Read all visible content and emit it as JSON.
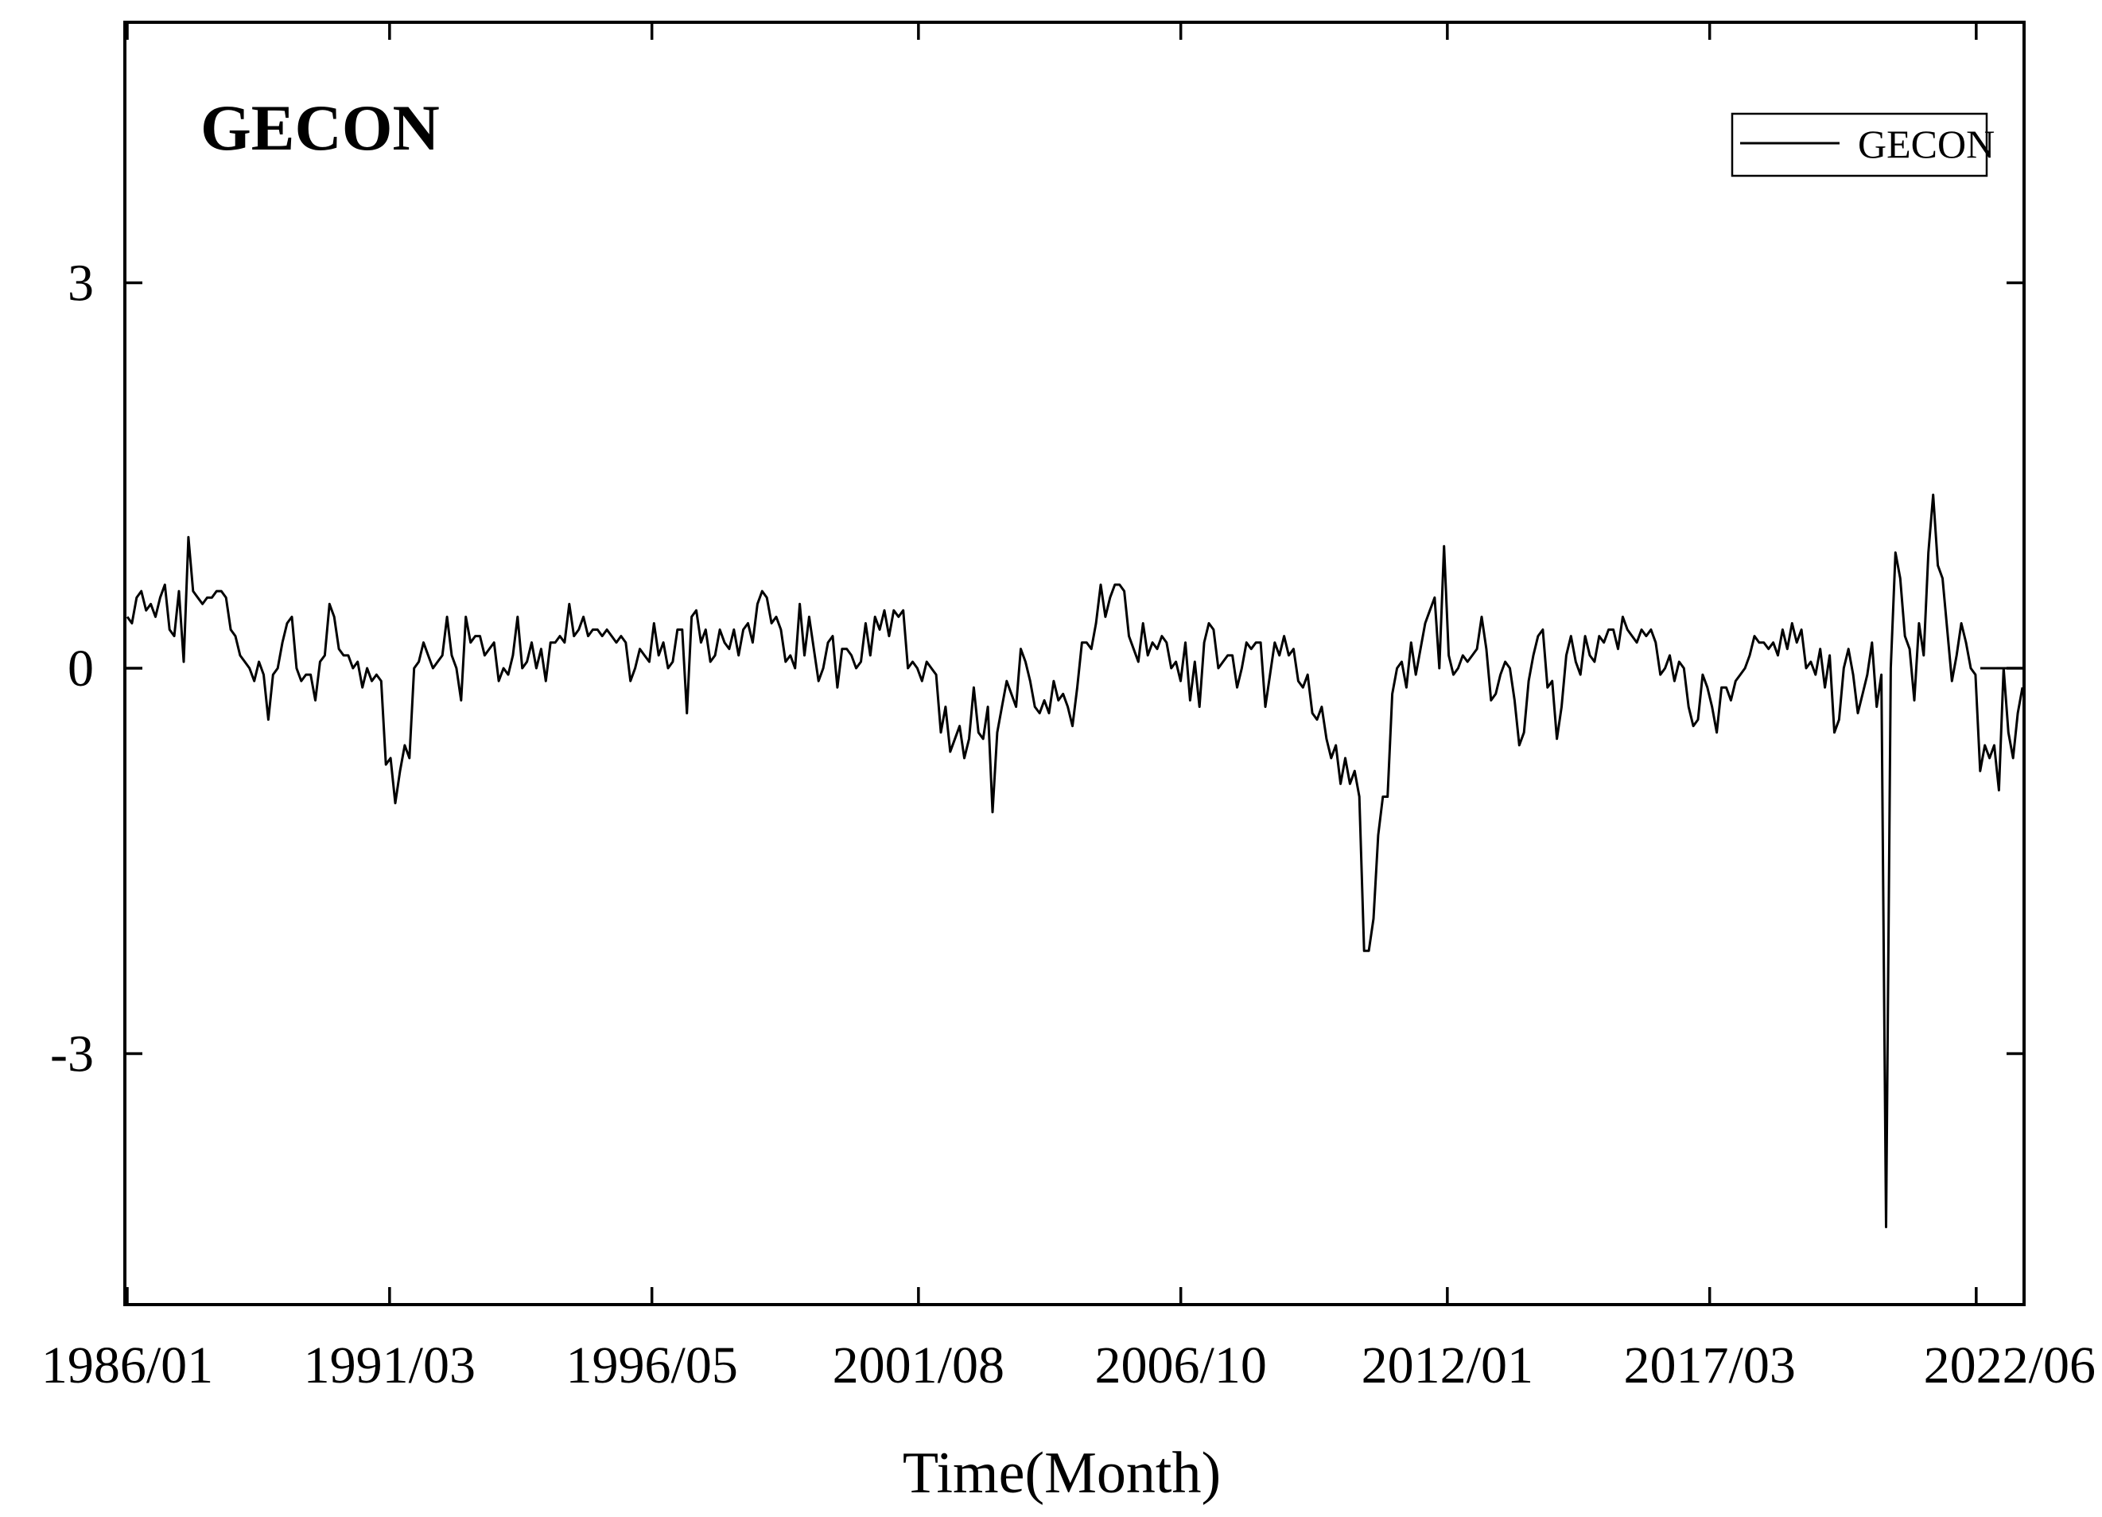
{
  "chart_data": {
    "type": "line",
    "title": "GECON",
    "xlabel": "Time(Month)",
    "ylabel": "",
    "x_start": "1986/01",
    "x_end": "2022/12",
    "xticks": [
      "1986/01",
      "1991/03",
      "1996/05",
      "2001/08",
      "2006/10",
      "2012/01",
      "2017/03",
      "2022/06"
    ],
    "yticks": [
      3,
      0,
      -3
    ],
    "ylim": [
      -5.0,
      5.0
    ],
    "legend_position": "top-right",
    "grid": false,
    "series": [
      {
        "name": "GECON",
        "color": "#000000",
        "values": [
          0.4,
          0.35,
          0.55,
          0.6,
          0.45,
          0.5,
          0.4,
          0.55,
          0.65,
          0.3,
          0.25,
          0.6,
          0.05,
          1.02,
          0.6,
          0.55,
          0.5,
          0.55,
          0.55,
          0.6,
          0.6,
          0.55,
          0.3,
          0.25,
          0.1,
          0.05,
          0.0,
          -0.1,
          0.05,
          -0.05,
          -0.4,
          -0.05,
          0.0,
          0.2,
          0.35,
          0.4,
          0.0,
          -0.1,
          -0.05,
          -0.05,
          -0.25,
          0.05,
          0.1,
          0.5,
          0.4,
          0.15,
          0.1,
          0.1,
          0.0,
          0.05,
          -0.15,
          0.0,
          -0.1,
          -0.05,
          -0.1,
          -0.75,
          -0.7,
          -1.05,
          -0.8,
          -0.6,
          -0.7,
          0.0,
          0.05,
          0.2,
          0.1,
          0.0,
          0.05,
          0.1,
          0.4,
          0.1,
          0.0,
          -0.25,
          0.4,
          0.2,
          0.25,
          0.25,
          0.1,
          0.15,
          0.2,
          -0.1,
          0.0,
          -0.05,
          0.1,
          0.4,
          0.0,
          0.05,
          0.2,
          0.0,
          0.15,
          -0.1,
          0.2,
          0.2,
          0.25,
          0.2,
          0.5,
          0.25,
          0.3,
          0.4,
          0.25,
          0.3,
          0.3,
          0.25,
          0.3,
          0.25,
          0.2,
          0.25,
          0.2,
          -0.1,
          0.0,
          0.15,
          0.1,
          0.05,
          0.35,
          0.1,
          0.2,
          0.0,
          0.05,
          0.3,
          0.3,
          -0.35,
          0.4,
          0.45,
          0.2,
          0.3,
          0.05,
          0.1,
          0.3,
          0.2,
          0.15,
          0.3,
          0.1,
          0.3,
          0.35,
          0.2,
          0.5,
          0.6,
          0.55,
          0.35,
          0.4,
          0.3,
          0.05,
          0.1,
          0.0,
          0.5,
          0.1,
          0.4,
          0.15,
          -0.1,
          0.0,
          0.2,
          0.25,
          -0.15,
          0.15,
          0.15,
          0.1,
          0.0,
          0.05,
          0.35,
          0.1,
          0.4,
          0.3,
          0.45,
          0.25,
          0.45,
          0.4,
          0.45,
          0.0,
          0.05,
          0.0,
          -0.1,
          0.05,
          0.0,
          -0.05,
          -0.5,
          -0.3,
          -0.65,
          -0.55,
          -0.45,
          -0.7,
          -0.55,
          -0.15,
          -0.5,
          -0.55,
          -0.3,
          -1.12,
          -0.5,
          -0.3,
          -0.1,
          -0.2,
          -0.3,
          0.15,
          0.05,
          -0.1,
          -0.3,
          -0.35,
          -0.25,
          -0.35,
          -0.1,
          -0.25,
          -0.2,
          -0.3,
          -0.45,
          -0.15,
          0.2,
          0.2,
          0.15,
          0.35,
          0.65,
          0.4,
          0.55,
          0.65,
          0.65,
          0.6,
          0.25,
          0.15,
          0.05,
          0.35,
          0.1,
          0.2,
          0.15,
          0.25,
          0.2,
          0.0,
          0.05,
          -0.1,
          0.2,
          -0.25,
          0.05,
          -0.3,
          0.2,
          0.35,
          0.3,
          0.0,
          0.05,
          0.1,
          0.1,
          -0.15,
          0.0,
          0.2,
          0.15,
          0.2,
          0.2,
          -0.3,
          -0.05,
          0.2,
          0.1,
          0.25,
          0.1,
          0.15,
          -0.1,
          -0.15,
          -0.05,
          -0.35,
          -0.4,
          -0.3,
          -0.55,
          -0.7,
          -0.6,
          -0.9,
          -0.7,
          -0.9,
          -0.8,
          -1.0,
          -2.2,
          -2.2,
          -1.95,
          -1.3,
          -1.0,
          -1.0,
          -0.2,
          0.0,
          0.05,
          -0.15,
          0.2,
          -0.05,
          0.15,
          0.35,
          0.45,
          0.55,
          0.0,
          0.95,
          0.1,
          -0.05,
          0.0,
          0.1,
          0.05,
          0.1,
          0.15,
          0.4,
          0.15,
          -0.25,
          -0.2,
          -0.05,
          0.05,
          0.0,
          -0.25,
          -0.6,
          -0.5,
          -0.1,
          0.1,
          0.25,
          0.3,
          -0.15,
          -0.1,
          -0.55,
          -0.3,
          0.1,
          0.25,
          0.05,
          -0.05,
          0.25,
          0.1,
          0.05,
          0.25,
          0.2,
          0.3,
          0.3,
          0.15,
          0.4,
          0.3,
          0.25,
          0.2,
          0.3,
          0.25,
          0.3,
          0.2,
          -0.05,
          0.0,
          0.1,
          -0.1,
          0.05,
          0.0,
          -0.3,
          -0.45,
          -0.4,
          -0.05,
          -0.15,
          -0.3,
          -0.5,
          -0.15,
          -0.15,
          -0.25,
          -0.1,
          -0.05,
          0.0,
          0.1,
          0.25,
          0.2,
          0.2,
          0.15,
          0.2,
          0.1,
          0.3,
          0.15,
          0.35,
          0.2,
          0.3,
          0.0,
          0.05,
          -0.05,
          0.15,
          -0.15,
          0.1,
          -0.5,
          -0.4,
          0.0,
          0.15,
          -0.05,
          -0.35,
          -0.2,
          -0.05,
          0.2,
          -0.3,
          -0.05,
          -4.35,
          0.0,
          0.9,
          0.7,
          0.25,
          0.15,
          -0.25,
          0.35,
          0.1,
          0.9,
          1.35,
          0.8,
          0.7,
          0.3,
          -0.1,
          0.1,
          0.35,
          0.2,
          0.0,
          -0.05,
          -0.8,
          -0.6,
          -0.7,
          -0.6,
          -0.95,
          0.0,
          -0.5,
          -0.7,
          -0.35,
          -0.15
        ]
      }
    ]
  }
}
